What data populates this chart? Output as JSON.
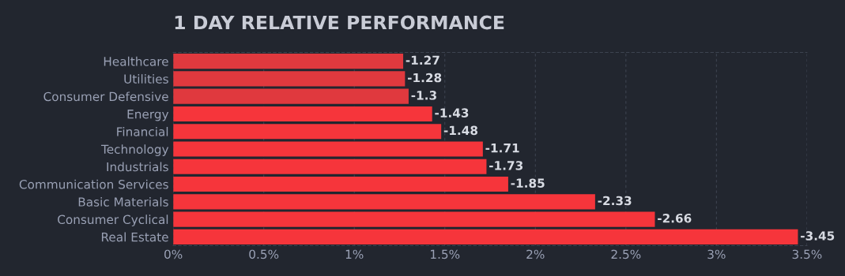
{
  "chart_data": {
    "type": "bar",
    "orientation": "horizontal",
    "title": "1 DAY RELATIVE PERFORMANCE",
    "categories": [
      "Healthcare",
      "Utilities",
      "Consumer Defensive",
      "Energy",
      "Financial",
      "Technology",
      "Industrials",
      "Communication Services",
      "Basic Materials",
      "Consumer Cyclical",
      "Real Estate"
    ],
    "values": [
      -1.27,
      -1.28,
      -1.3,
      -1.43,
      -1.48,
      -1.71,
      -1.73,
      -1.85,
      -2.33,
      -2.66,
      -3.45
    ],
    "data_labels": true,
    "colors": [
      "#e0393e",
      "#e0393e",
      "#e0393e",
      "#f6353b",
      "#f6353b",
      "#f6353b",
      "#f6353b",
      "#f6353b",
      "#f6353b",
      "#f6353b",
      "#f6353b"
    ],
    "xlim": [
      0,
      -3.5
    ],
    "xticks": [
      {
        "value": 0,
        "label": "0%"
      },
      {
        "value": -0.5,
        "label": "0.5%"
      },
      {
        "value": -1,
        "label": "1%"
      },
      {
        "value": -1.5,
        "label": "1.5%"
      },
      {
        "value": -2,
        "label": "2%"
      },
      {
        "value": -2.5,
        "label": "2.5%"
      },
      {
        "value": -3,
        "label": "3%"
      },
      {
        "value": -3.5,
        "label": "3.5%"
      }
    ],
    "grid": "x",
    "legend": false
  }
}
